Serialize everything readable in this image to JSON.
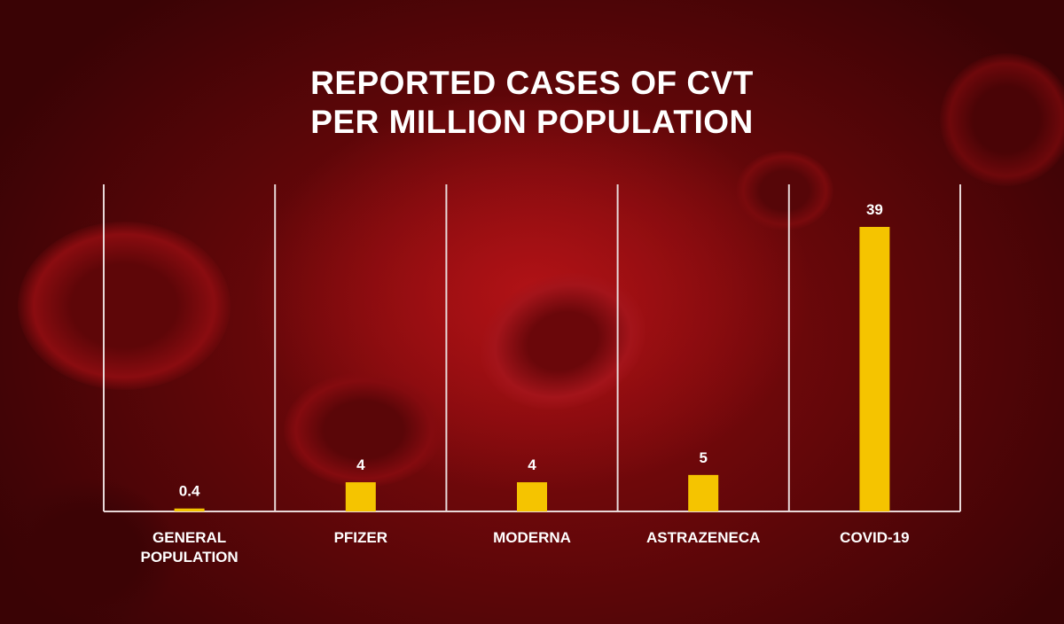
{
  "title_line1": "REPORTED CASES OF CVT",
  "title_line2": "PER MILLION POPULATION",
  "colors": {
    "bar": "#f5c400",
    "text": "#ffffff",
    "background": "#8c0b0e",
    "axis": "#e8d8d8"
  },
  "chart_data": {
    "type": "bar",
    "title": "REPORTED CASES OF CVT PER MILLION POPULATION",
    "categories": [
      "GENERAL POPULATION",
      "PFIZER",
      "MODERNA",
      "ASTRAZENECA",
      "COVID-19"
    ],
    "values": [
      0.4,
      4,
      4,
      5,
      39
    ],
    "data_labels": [
      "0.4",
      "4",
      "4",
      "5",
      "39"
    ],
    "ylim": [
      0,
      39
    ],
    "grid": false,
    "legend": "none"
  }
}
